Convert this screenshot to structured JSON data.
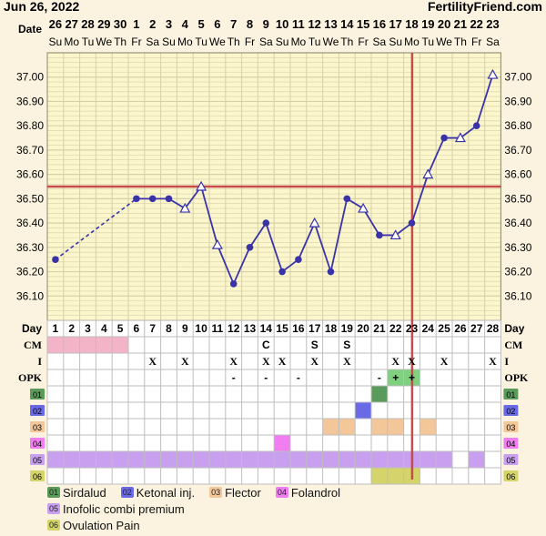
{
  "header": {
    "date": "Jun 26, 2022",
    "brand": "FertilityFriend.com"
  },
  "labels": {
    "date": "Date",
    "day": "Day",
    "cm": "CM",
    "i": "I",
    "opk": "OPK"
  },
  "chart_data": {
    "type": "line",
    "title": "",
    "xlabel": "Day",
    "ylabel": "",
    "ylim": [
      36.0,
      37.1
    ],
    "ytick_labels": [
      "37.00",
      "36.90",
      "36.80",
      "36.70",
      "36.60",
      "36.50",
      "36.40",
      "36.30",
      "36.20",
      "36.10"
    ],
    "ytick_values": [
      37.0,
      36.9,
      36.8,
      36.7,
      36.6,
      36.5,
      36.4,
      36.3,
      36.2,
      36.1
    ],
    "date_numbers": [
      "26",
      "27",
      "28",
      "29",
      "30",
      "1",
      "2",
      "3",
      "4",
      "5",
      "6",
      "7",
      "8",
      "9",
      "10",
      "11",
      "12",
      "13",
      "14",
      "15",
      "16",
      "17",
      "18",
      "19",
      "20",
      "21",
      "22",
      "23"
    ],
    "weekdays": [
      "Su",
      "Mo",
      "Tu",
      "We",
      "Th",
      "Fr",
      "Sa",
      "Su",
      "Mo",
      "Tu",
      "We",
      "Th",
      "Fr",
      "Sa",
      "Su",
      "Mo",
      "Tu",
      "We",
      "Th",
      "Fr",
      "Sa",
      "Su",
      "Mo",
      "Tu",
      "We",
      "Th",
      "Fr",
      "Sa"
    ],
    "cycle_days": [
      "1",
      "2",
      "3",
      "4",
      "5",
      "6",
      "7",
      "8",
      "9",
      "10",
      "11",
      "12",
      "13",
      "14",
      "15",
      "16",
      "17",
      "18",
      "19",
      "20",
      "21",
      "22",
      "23",
      "24",
      "25",
      "26",
      "27",
      "28"
    ],
    "temperatures": [
      36.25,
      null,
      null,
      null,
      null,
      36.5,
      36.5,
      36.5,
      36.46,
      36.55,
      36.31,
      36.15,
      36.3,
      36.4,
      36.2,
      36.25,
      36.4,
      36.2,
      36.5,
      36.46,
      36.35,
      36.35,
      36.4,
      36.6,
      36.75,
      36.75,
      36.8,
      37.01
    ],
    "open_marker_days": [
      9,
      10,
      11,
      17,
      20,
      22,
      24,
      26,
      28
    ],
    "dashed_segment_days": [
      1,
      6
    ],
    "coverline": 36.55,
    "ovulation_day": 23,
    "menstruation_days": [
      1,
      2,
      3,
      4,
      5
    ],
    "cm": {
      "14": "C",
      "17": "S",
      "19": "S"
    },
    "intercourse": {
      "7": "X",
      "9": "X",
      "12": "X",
      "14": "X",
      "15": "X",
      "17": "X",
      "19": "X",
      "22": "X",
      "23": "X",
      "25": "X",
      "28": "X"
    },
    "opk": {
      "12": "-",
      "14": "-",
      "16": "-",
      "21": "-",
      "22": "+",
      "23": "+"
    },
    "opk_positive_color": "#7fd07f",
    "rows": [
      {
        "code": "01",
        "color": "#5a9a5a",
        "days": [
          21
        ]
      },
      {
        "code": "02",
        "color": "#6a6ae6",
        "days": [
          20
        ]
      },
      {
        "code": "03",
        "color": "#f4c79a",
        "days": [
          18,
          19,
          21,
          22,
          24
        ]
      },
      {
        "code": "04",
        "color": "#f07ef0",
        "days": [
          15
        ]
      },
      {
        "code": "05",
        "color": "#c9a0f0",
        "days": [
          1,
          2,
          3,
          4,
          5,
          6,
          7,
          8,
          9,
          10,
          11,
          12,
          13,
          14,
          15,
          16,
          17,
          18,
          19,
          20,
          21,
          22,
          23,
          24,
          25,
          27
        ]
      },
      {
        "code": "06",
        "color": "#d4d46a",
        "days": [
          21,
          22,
          23
        ]
      }
    ]
  },
  "legend": [
    [
      {
        "code": "01",
        "label": "Sirdalud",
        "color": "#5a9a5a"
      },
      {
        "code": "02",
        "label": "Ketonal inj.",
        "color": "#6a6ae6"
      },
      {
        "code": "03",
        "label": "Flector",
        "color": "#f4c79a"
      },
      {
        "code": "04",
        "label": "Folandrol",
        "color": "#f07ef0"
      }
    ],
    [
      {
        "code": "05",
        "label": "Inofolic combi premium",
        "color": "#c9a0f0"
      }
    ],
    [
      {
        "code": "06",
        "label": "Ovulation Pain",
        "color": "#d4d46a"
      }
    ]
  ],
  "colors": {
    "line": "#3a33a8",
    "coverline": "#c94a4a",
    "ovulation": "#c94a4a",
    "grid": "#d8d0a8",
    "plot_bg": "#fbf6cc",
    "menstruation": "#f4b4c8"
  }
}
